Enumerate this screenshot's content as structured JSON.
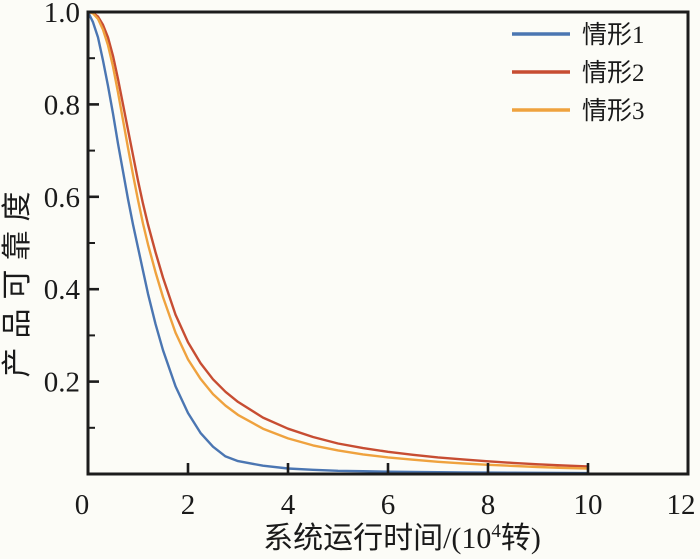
{
  "figure": {
    "background": "#fcfcf7",
    "frame_color": "#1c1c1c",
    "text_color": "#1a1a1a"
  },
  "chart_data": {
    "type": "line",
    "title": "",
    "xlabel": "系统运行时间/(10⁴转)",
    "xlabel_parts": {
      "prefix": "系统运行时间/(10",
      "superscript": "4",
      "suffix": "转)"
    },
    "ylabel": "产品可靠度",
    "xlim": [
      0,
      12
    ],
    "ylim": [
      0,
      1.0
    ],
    "grid": false,
    "legend_position": "upper right",
    "x_ticks": [
      0,
      2,
      4,
      6,
      8,
      10,
      12
    ],
    "x_tick_labels": [
      "0",
      "2",
      "4",
      "6",
      "8",
      "10",
      "12"
    ],
    "y_ticks": [
      0.2,
      0.4,
      0.6,
      0.8,
      1.0
    ],
    "y_tick_labels": [
      "0.2",
      "0.4",
      "0.6",
      "0.8",
      "1.0"
    ],
    "y_minor_ticks": [
      0.1,
      0.3,
      0.5,
      0.7,
      0.9
    ],
    "x": [
      0,
      0.1,
      0.2,
      0.3,
      0.4,
      0.5,
      0.6,
      0.7,
      0.8,
      0.9,
      1,
      1.1,
      1.2,
      1.35,
      1.5,
      1.75,
      2,
      2.25,
      2.5,
      2.75,
      3,
      3.5,
      4,
      4.5,
      5,
      5.5,
      6,
      6.5,
      7,
      7.5,
      8,
      8.5,
      9,
      9.5,
      10
    ],
    "series": [
      {
        "id": "case-1",
        "name": "情形1",
        "color": "#4b76b2",
        "values": [
          1,
          0.978,
          0.945,
          0.895,
          0.84,
          0.78,
          0.715,
          0.655,
          0.595,
          0.54,
          0.49,
          0.44,
          0.39,
          0.325,
          0.268,
          0.19,
          0.132,
          0.089,
          0.059,
          0.038,
          0.028,
          0.018,
          0.012,
          0.009,
          0.007,
          0.006,
          0.005,
          0.0045,
          0.004,
          0.0035,
          0.003,
          0.0028,
          0.0025,
          0.0022,
          0.002
        ]
      },
      {
        "id": "case-2",
        "name": "情形2",
        "color": "#c74d32",
        "values": [
          1,
          0.998,
          0.99,
          0.972,
          0.945,
          0.905,
          0.855,
          0.8,
          0.745,
          0.69,
          0.635,
          0.585,
          0.54,
          0.48,
          0.425,
          0.345,
          0.285,
          0.24,
          0.205,
          0.178,
          0.156,
          0.122,
          0.098,
          0.08,
          0.066,
          0.056,
          0.048,
          0.0415,
          0.036,
          0.0315,
          0.0275,
          0.024,
          0.021,
          0.0185,
          0.0165
        ]
      },
      {
        "id": "case-3",
        "name": "情形3",
        "color": "#efa23e",
        "values": [
          1,
          0.997,
          0.985,
          0.962,
          0.928,
          0.882,
          0.826,
          0.766,
          0.706,
          0.648,
          0.593,
          0.542,
          0.497,
          0.437,
          0.383,
          0.306,
          0.248,
          0.206,
          0.173,
          0.148,
          0.128,
          0.098,
          0.077,
          0.062,
          0.051,
          0.0425,
          0.036,
          0.031,
          0.0265,
          0.023,
          0.02,
          0.0175,
          0.0152,
          0.0133,
          0.0118
        ]
      }
    ]
  }
}
